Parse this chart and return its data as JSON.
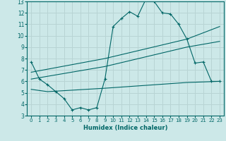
{
  "xlabel": "Humidex (Indice chaleur)",
  "xlim": [
    -0.5,
    23.5
  ],
  "ylim": [
    3,
    13
  ],
  "yticks": [
    3,
    4,
    5,
    6,
    7,
    8,
    9,
    10,
    11,
    12,
    13
  ],
  "xticks": [
    0,
    1,
    2,
    3,
    4,
    5,
    6,
    7,
    8,
    9,
    10,
    11,
    12,
    13,
    14,
    15,
    16,
    17,
    18,
    19,
    20,
    21,
    22,
    23
  ],
  "bg_color": "#cce8e8",
  "grid_color": "#b8d4d4",
  "line_color": "#006666",
  "line1_x": [
    0,
    1,
    2,
    3,
    4,
    5,
    6,
    7,
    8,
    9,
    10,
    11,
    12,
    13,
    14,
    15,
    16,
    17,
    18,
    19,
    20,
    21,
    22,
    23
  ],
  "line1_y": [
    7.7,
    6.2,
    5.7,
    5.1,
    4.5,
    3.5,
    3.7,
    3.5,
    3.7,
    6.2,
    10.8,
    11.5,
    12.1,
    11.7,
    13.2,
    13.0,
    12.0,
    11.9,
    11.0,
    9.7,
    7.6,
    7.7,
    6.0,
    6.0
  ],
  "line2_x": [
    0,
    9,
    19,
    23
  ],
  "line2_y": [
    6.8,
    8.0,
    9.7,
    10.8
  ],
  "line3_x": [
    0,
    9,
    19,
    23
  ],
  "line3_y": [
    6.2,
    7.3,
    9.0,
    9.5
  ],
  "line4_x": [
    0,
    2,
    9,
    19,
    23
  ],
  "line4_y": [
    5.3,
    5.1,
    5.4,
    5.9,
    6.0
  ]
}
